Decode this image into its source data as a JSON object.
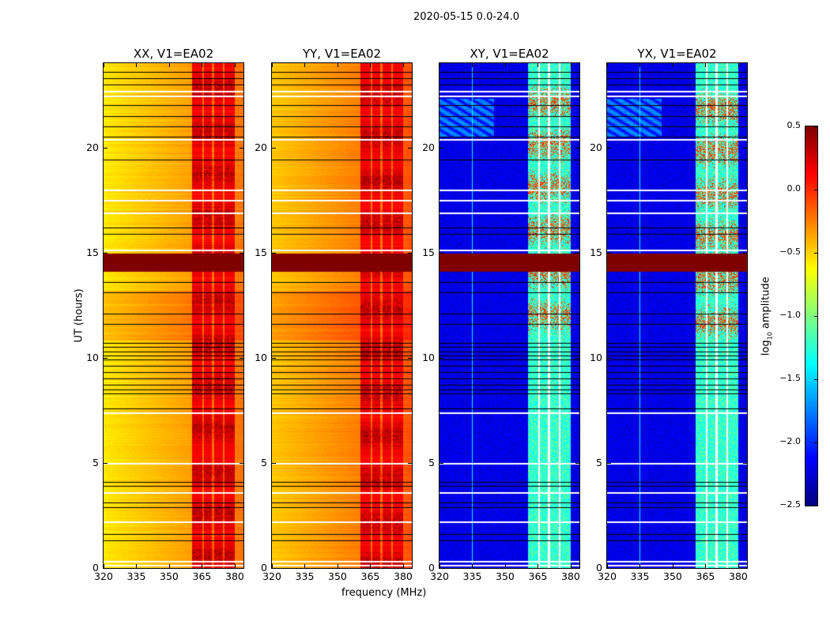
{
  "chart_data": {
    "type": "heatmap",
    "title": "2020-05-15 0.0-24.0",
    "xlabel": "frequency (MHz)",
    "ylabel": "UT (hours)",
    "xlim": [
      320,
      384
    ],
    "ylim": [
      0,
      24
    ],
    "xticks": [
      "320",
      "335",
      "350",
      "365",
      "380"
    ],
    "xtick_values": [
      320,
      335,
      350,
      365,
      380
    ],
    "yticks": [
      "0",
      "5",
      "10",
      "15",
      "20"
    ],
    "ytick_values": [
      0,
      5,
      10,
      15,
      20
    ],
    "colorbar": {
      "label_main": "log",
      "label_sub": "10",
      "label_rest": " amplitude",
      "range": [
        -2.5,
        0.5
      ],
      "colormap": "jet",
      "ticks": [
        "0.5",
        "0.0",
        "−0.5",
        "−1.0",
        "−1.5",
        "−2.0",
        "−2.5"
      ],
      "tick_values": [
        0.5,
        0,
        -0.5,
        -1,
        -1.5,
        -2,
        -2.5
      ]
    },
    "rfi_band_mhz": [
      360.5,
      380
    ],
    "band_separators_mhz": [
      365.5,
      370,
      375
    ],
    "high_amplitude_rows_hours": [
      14.1,
      14.95
    ],
    "white_flag_rows_hours": [
      0.15,
      0.35,
      2.2,
      3.6,
      5.0,
      7.4,
      15.15,
      16.9,
      17.5,
      18.0,
      20.4,
      22.45,
      22.7
    ],
    "black_flag_rows_hours": [
      1.3,
      1.6,
      2.9,
      3.1,
      3.9,
      4.1,
      7.6,
      8.3,
      8.5,
      8.7,
      9.0,
      9.3,
      9.6,
      9.9,
      10.1,
      10.3,
      10.5,
      10.7,
      11.6,
      12.1,
      13.1,
      13.6,
      15.9,
      16.2,
      19.4,
      20.5,
      21.0,
      21.5,
      22.0,
      23.0,
      23.3,
      23.6
    ],
    "panels": [
      {
        "title": "XX, V1=EA02",
        "kind": "auto",
        "base_level": -0.6,
        "band_level": 0.15
      },
      {
        "title": "YY, V1=EA02",
        "kind": "auto",
        "base_level": -0.5,
        "band_level": 0.15
      },
      {
        "title": "XY, V1=EA02",
        "kind": "cross",
        "base_level": -2.2,
        "band_level": -1.3
      },
      {
        "title": "YX, V1=EA02",
        "kind": "cross",
        "base_level": -2.2,
        "band_level": -1.3
      }
    ]
  }
}
